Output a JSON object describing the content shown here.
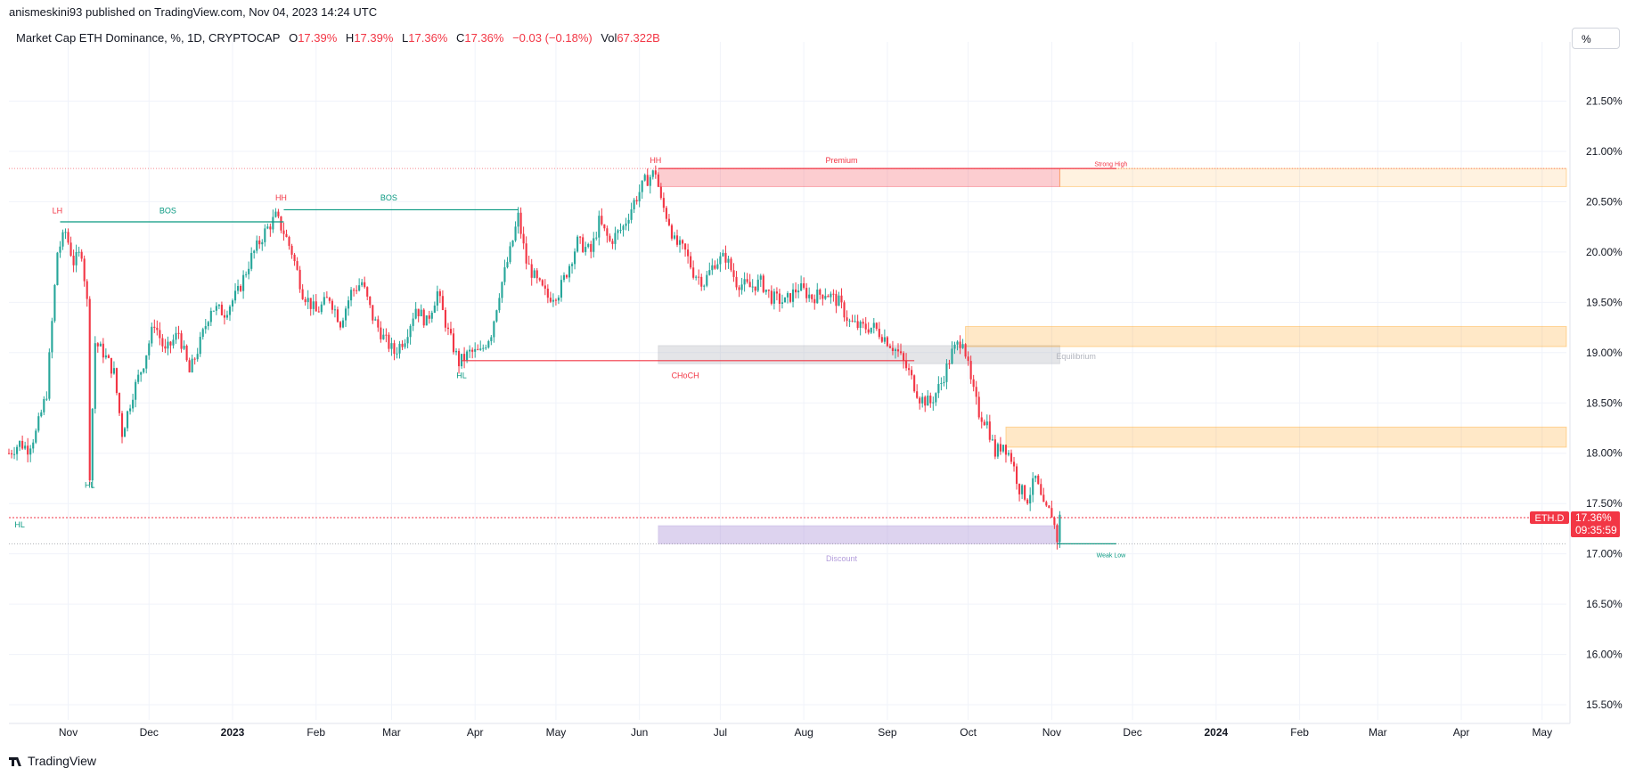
{
  "header": {
    "published": "anismeskini93 published on TradingView.com, Nov 04, 2023 14:24 UTC",
    "symbol": "Market Cap ETH Dominance, %, 1D, CRYPTOCAP",
    "o_label": "O",
    "o_value": "17.39%",
    "h_label": "H",
    "h_value": "17.39%",
    "l_label": "L",
    "l_value": "17.36%",
    "c_label": "C",
    "c_value": "17.36%",
    "change": "−0.03 (−0.18%)",
    "vol_label": "Vol",
    "vol_value": "67.322B",
    "scale_button": "%"
  },
  "footer": {
    "brand": "TradingView"
  },
  "colors": {
    "up": "#26a69a",
    "down": "#f23645",
    "grid": "#f0f3fa",
    "bos": "#089981",
    "premium": "#f23645",
    "discount": "#b39ddb",
    "equilibrium": "#b2b5be",
    "orange": "#ff9800"
  },
  "chart_data": {
    "type": "candlestick",
    "title": "Market Cap ETH Dominance, %, 1D, CRYPTOCAP",
    "ylim": [
      15.35,
      22.0
    ],
    "y_ticks": [
      "21.50%",
      "21.00%",
      "20.50%",
      "20.00%",
      "19.50%",
      "19.00%",
      "18.50%",
      "18.00%",
      "17.50%",
      "17.00%",
      "16.50%",
      "16.00%",
      "15.50%"
    ],
    "y_tick_values": [
      21.5,
      21.0,
      20.5,
      20.0,
      19.5,
      19.0,
      18.5,
      18.0,
      17.5,
      17.0,
      16.5,
      16.0,
      15.5
    ],
    "x_ticks": [
      "Nov",
      "Dec",
      "2023",
      "Feb",
      "Mar",
      "Apr",
      "May",
      "Jun",
      "Jul",
      "Aug",
      "Sep",
      "Oct",
      "Nov",
      "Dec",
      "2024",
      "Feb",
      "Mar",
      "Apr",
      "May"
    ],
    "x_tick_dates": [
      "2022-11-01",
      "2022-12-01",
      "2023-01-01",
      "2023-02-01",
      "2023-03-01",
      "2023-04-01",
      "2023-05-01",
      "2023-06-01",
      "2023-07-01",
      "2023-08-01",
      "2023-09-01",
      "2023-10-01",
      "2023-11-01",
      "2023-12-01",
      "2024-01-01",
      "2024-02-01",
      "2024-03-01",
      "2024-04-01",
      "2024-05-01"
    ],
    "x_range": [
      "2022-10-10",
      "2024-05-10"
    ],
    "close_path": [
      [
        "2022-10-10",
        18.0
      ],
      [
        "2022-10-14",
        18.1
      ],
      [
        "2022-10-17",
        18.05
      ],
      [
        "2022-10-20",
        18.2
      ],
      [
        "2022-10-24",
        18.6
      ],
      [
        "2022-10-26",
        19.3
      ],
      [
        "2022-10-28",
        20.0
      ],
      [
        "2022-10-31",
        20.2
      ],
      [
        "2022-11-03",
        19.9
      ],
      [
        "2022-11-06",
        20.0
      ],
      [
        "2022-11-08",
        19.5
      ],
      [
        "2022-11-09",
        17.8
      ],
      [
        "2022-11-11",
        19.1
      ],
      [
        "2022-11-14",
        19.0
      ],
      [
        "2022-11-18",
        18.8
      ],
      [
        "2022-11-21",
        18.2
      ],
      [
        "2022-11-25",
        18.6
      ],
      [
        "2022-11-29",
        18.9
      ],
      [
        "2022-12-03",
        19.3
      ],
      [
        "2022-12-07",
        19.0
      ],
      [
        "2022-12-12",
        19.2
      ],
      [
        "2022-12-16",
        18.8
      ],
      [
        "2022-12-20",
        19.1
      ],
      [
        "2022-12-24",
        19.45
      ],
      [
        "2022-12-29",
        19.4
      ],
      [
        "2023-01-03",
        19.6
      ],
      [
        "2023-01-08",
        19.95
      ],
      [
        "2023-01-13",
        20.2
      ],
      [
        "2023-01-17",
        20.35
      ],
      [
        "2023-01-20",
        20.2
      ],
      [
        "2023-01-23",
        20.0
      ],
      [
        "2023-01-27",
        19.6
      ],
      [
        "2023-02-01",
        19.4
      ],
      [
        "2023-02-06",
        19.55
      ],
      [
        "2023-02-10",
        19.3
      ],
      [
        "2023-02-14",
        19.6
      ],
      [
        "2023-02-18",
        19.7
      ],
      [
        "2023-02-22",
        19.35
      ],
      [
        "2023-02-26",
        19.15
      ],
      [
        "2023-03-02",
        19.0
      ],
      [
        "2023-03-06",
        19.15
      ],
      [
        "2023-03-10",
        19.45
      ],
      [
        "2023-03-14",
        19.3
      ],
      [
        "2023-03-18",
        19.6
      ],
      [
        "2023-03-22",
        19.2
      ],
      [
        "2023-03-26",
        18.9
      ],
      [
        "2023-03-30",
        19.0
      ],
      [
        "2023-04-03",
        19.0
      ],
      [
        "2023-04-07",
        19.2
      ],
      [
        "2023-04-10",
        19.6
      ],
      [
        "2023-04-14",
        20.0
      ],
      [
        "2023-04-17",
        20.35
      ],
      [
        "2023-04-20",
        19.9
      ],
      [
        "2023-04-24",
        19.7
      ],
      [
        "2023-04-28",
        19.55
      ],
      [
        "2023-05-02",
        19.6
      ],
      [
        "2023-05-05",
        19.8
      ],
      [
        "2023-05-09",
        20.1
      ],
      [
        "2023-05-14",
        20.0
      ],
      [
        "2023-05-17",
        20.3
      ],
      [
        "2023-05-21",
        20.1
      ],
      [
        "2023-05-26",
        20.25
      ],
      [
        "2023-05-30",
        20.5
      ],
      [
        "2023-06-03",
        20.7
      ],
      [
        "2023-06-07",
        20.8
      ],
      [
        "2023-06-09",
        20.5
      ],
      [
        "2023-06-12",
        20.3
      ],
      [
        "2023-06-14",
        20.1
      ],
      [
        "2023-06-18",
        20.0
      ],
      [
        "2023-06-21",
        19.8
      ],
      [
        "2023-06-25",
        19.7
      ],
      [
        "2023-06-29",
        19.9
      ],
      [
        "2023-07-03",
        19.95
      ],
      [
        "2023-07-07",
        19.7
      ],
      [
        "2023-07-12",
        19.65
      ],
      [
        "2023-07-16",
        19.7
      ],
      [
        "2023-07-20",
        19.55
      ],
      [
        "2023-07-25",
        19.5
      ],
      [
        "2023-07-30",
        19.65
      ],
      [
        "2023-08-04",
        19.55
      ],
      [
        "2023-08-09",
        19.6
      ],
      [
        "2023-08-14",
        19.5
      ],
      [
        "2023-08-18",
        19.3
      ],
      [
        "2023-08-22",
        19.25
      ],
      [
        "2023-08-27",
        19.25
      ],
      [
        "2023-08-31",
        19.15
      ],
      [
        "2023-09-05",
        19.0
      ],
      [
        "2023-09-09",
        18.8
      ],
      [
        "2023-09-13",
        18.55
      ],
      [
        "2023-09-17",
        18.5
      ],
      [
        "2023-09-21",
        18.7
      ],
      [
        "2023-09-25",
        19.0
      ],
      [
        "2023-09-29",
        19.15
      ],
      [
        "2023-10-02",
        18.7
      ],
      [
        "2023-10-05",
        18.4
      ],
      [
        "2023-10-08",
        18.3
      ],
      [
        "2023-10-11",
        18.0
      ],
      [
        "2023-10-14",
        18.1
      ],
      [
        "2023-10-17",
        17.95
      ],
      [
        "2023-10-20",
        17.65
      ],
      [
        "2023-10-23",
        17.55
      ],
      [
        "2023-10-26",
        17.75
      ],
      [
        "2023-10-29",
        17.45
      ],
      [
        "2023-11-01",
        17.4
      ],
      [
        "2023-11-03",
        17.15
      ],
      [
        "2023-11-04",
        17.36
      ]
    ],
    "zones": [
      {
        "name": "premium",
        "label": "Premium",
        "from": "2023-06-08",
        "to": "2023-11-04",
        "y_low": 20.65,
        "y_high": 20.83
      },
      {
        "name": "premium-extension",
        "from": "2023-11-04",
        "to": "2024-05-10",
        "y_low": 20.65,
        "y_high": 20.83
      },
      {
        "name": "equilibrium",
        "label": "Equilibrium",
        "from": "2023-06-08",
        "to": "2023-11-04",
        "y_low": 18.89,
        "y_high": 19.07
      },
      {
        "name": "discount",
        "label": "Discount",
        "from": "2023-06-08",
        "to": "2023-11-04",
        "y_low": 17.1,
        "y_high": 17.28
      },
      {
        "name": "order-block-1",
        "from": "2023-09-30",
        "to": "2024-05-10",
        "y_low": 19.06,
        "y_high": 19.26
      },
      {
        "name": "order-block-2",
        "from": "2023-10-15",
        "to": "2024-05-10",
        "y_low": 18.06,
        "y_high": 18.26
      }
    ],
    "structure_lines": [
      {
        "name": "bos-line-1",
        "from": "2022-10-29",
        "to": "2023-01-20",
        "y": 20.3,
        "color": "bos"
      },
      {
        "name": "bos-line-2",
        "from": "2023-01-20",
        "to": "2023-04-17",
        "y": 20.42,
        "color": "bos"
      },
      {
        "name": "choch-line",
        "from": "2023-03-27",
        "to": "2023-09-11",
        "y": 18.92,
        "color": "premium"
      },
      {
        "name": "strong-high-line",
        "from": "2023-06-08",
        "to": "2023-11-25",
        "y": 20.83,
        "color": "premium"
      },
      {
        "name": "weak-low-line",
        "from": "2023-11-03",
        "to": "2023-11-25",
        "y": 17.1,
        "color": "bos"
      }
    ],
    "labels": [
      {
        "name": "label-lh",
        "text": "LH",
        "date": "2022-10-28",
        "y": 20.42,
        "color": "premium"
      },
      {
        "name": "label-bos-1",
        "text": "BOS",
        "date": "2022-12-08",
        "y": 20.42,
        "color": "bos"
      },
      {
        "name": "label-hh-1",
        "text": "HH",
        "date": "2023-01-19",
        "y": 20.55,
        "color": "premium"
      },
      {
        "name": "label-bos-2",
        "text": "BOS",
        "date": "2023-02-28",
        "y": 20.55,
        "color": "bos"
      },
      {
        "name": "label-hh-2",
        "text": "HH",
        "date": "2023-06-07",
        "y": 20.92,
        "color": "premium"
      },
      {
        "name": "label-premium",
        "text": "Premium",
        "date": "2023-08-15",
        "y": 20.92,
        "color": "premium"
      },
      {
        "name": "label-strong-high",
        "text": "Strong High",
        "date": "2023-11-23",
        "y": 20.89,
        "color": "premium"
      },
      {
        "name": "label-hl-1",
        "text": "HL",
        "date": "2022-11-09",
        "y": 17.69,
        "color": "bos"
      },
      {
        "name": "label-hl-2",
        "text": "HL",
        "date": "2023-03-27",
        "y": 18.78,
        "color": "bos"
      },
      {
        "name": "label-choch",
        "text": "CHoCH",
        "date": "2023-06-18",
        "y": 18.78,
        "color": "premium"
      },
      {
        "name": "label-equilibrium",
        "text": "Equilibrium",
        "date": "2023-11-10",
        "y": 18.97,
        "color": "equilibrium"
      },
      {
        "name": "label-hl-3",
        "text": "HL",
        "date": "2022-10-14",
        "y": 17.3,
        "color": "bos"
      },
      {
        "name": "label-discount",
        "text": "Discount",
        "date": "2023-08-15",
        "y": 16.96,
        "color": "discount"
      },
      {
        "name": "label-weak-low",
        "text": "Weak Low",
        "date": "2023-11-23",
        "y": 17.0,
        "color": "bos"
      }
    ],
    "current": {
      "symbol": "ETH.D",
      "price": "17.36%",
      "countdown": "09:35:59",
      "value": 17.36
    }
  }
}
